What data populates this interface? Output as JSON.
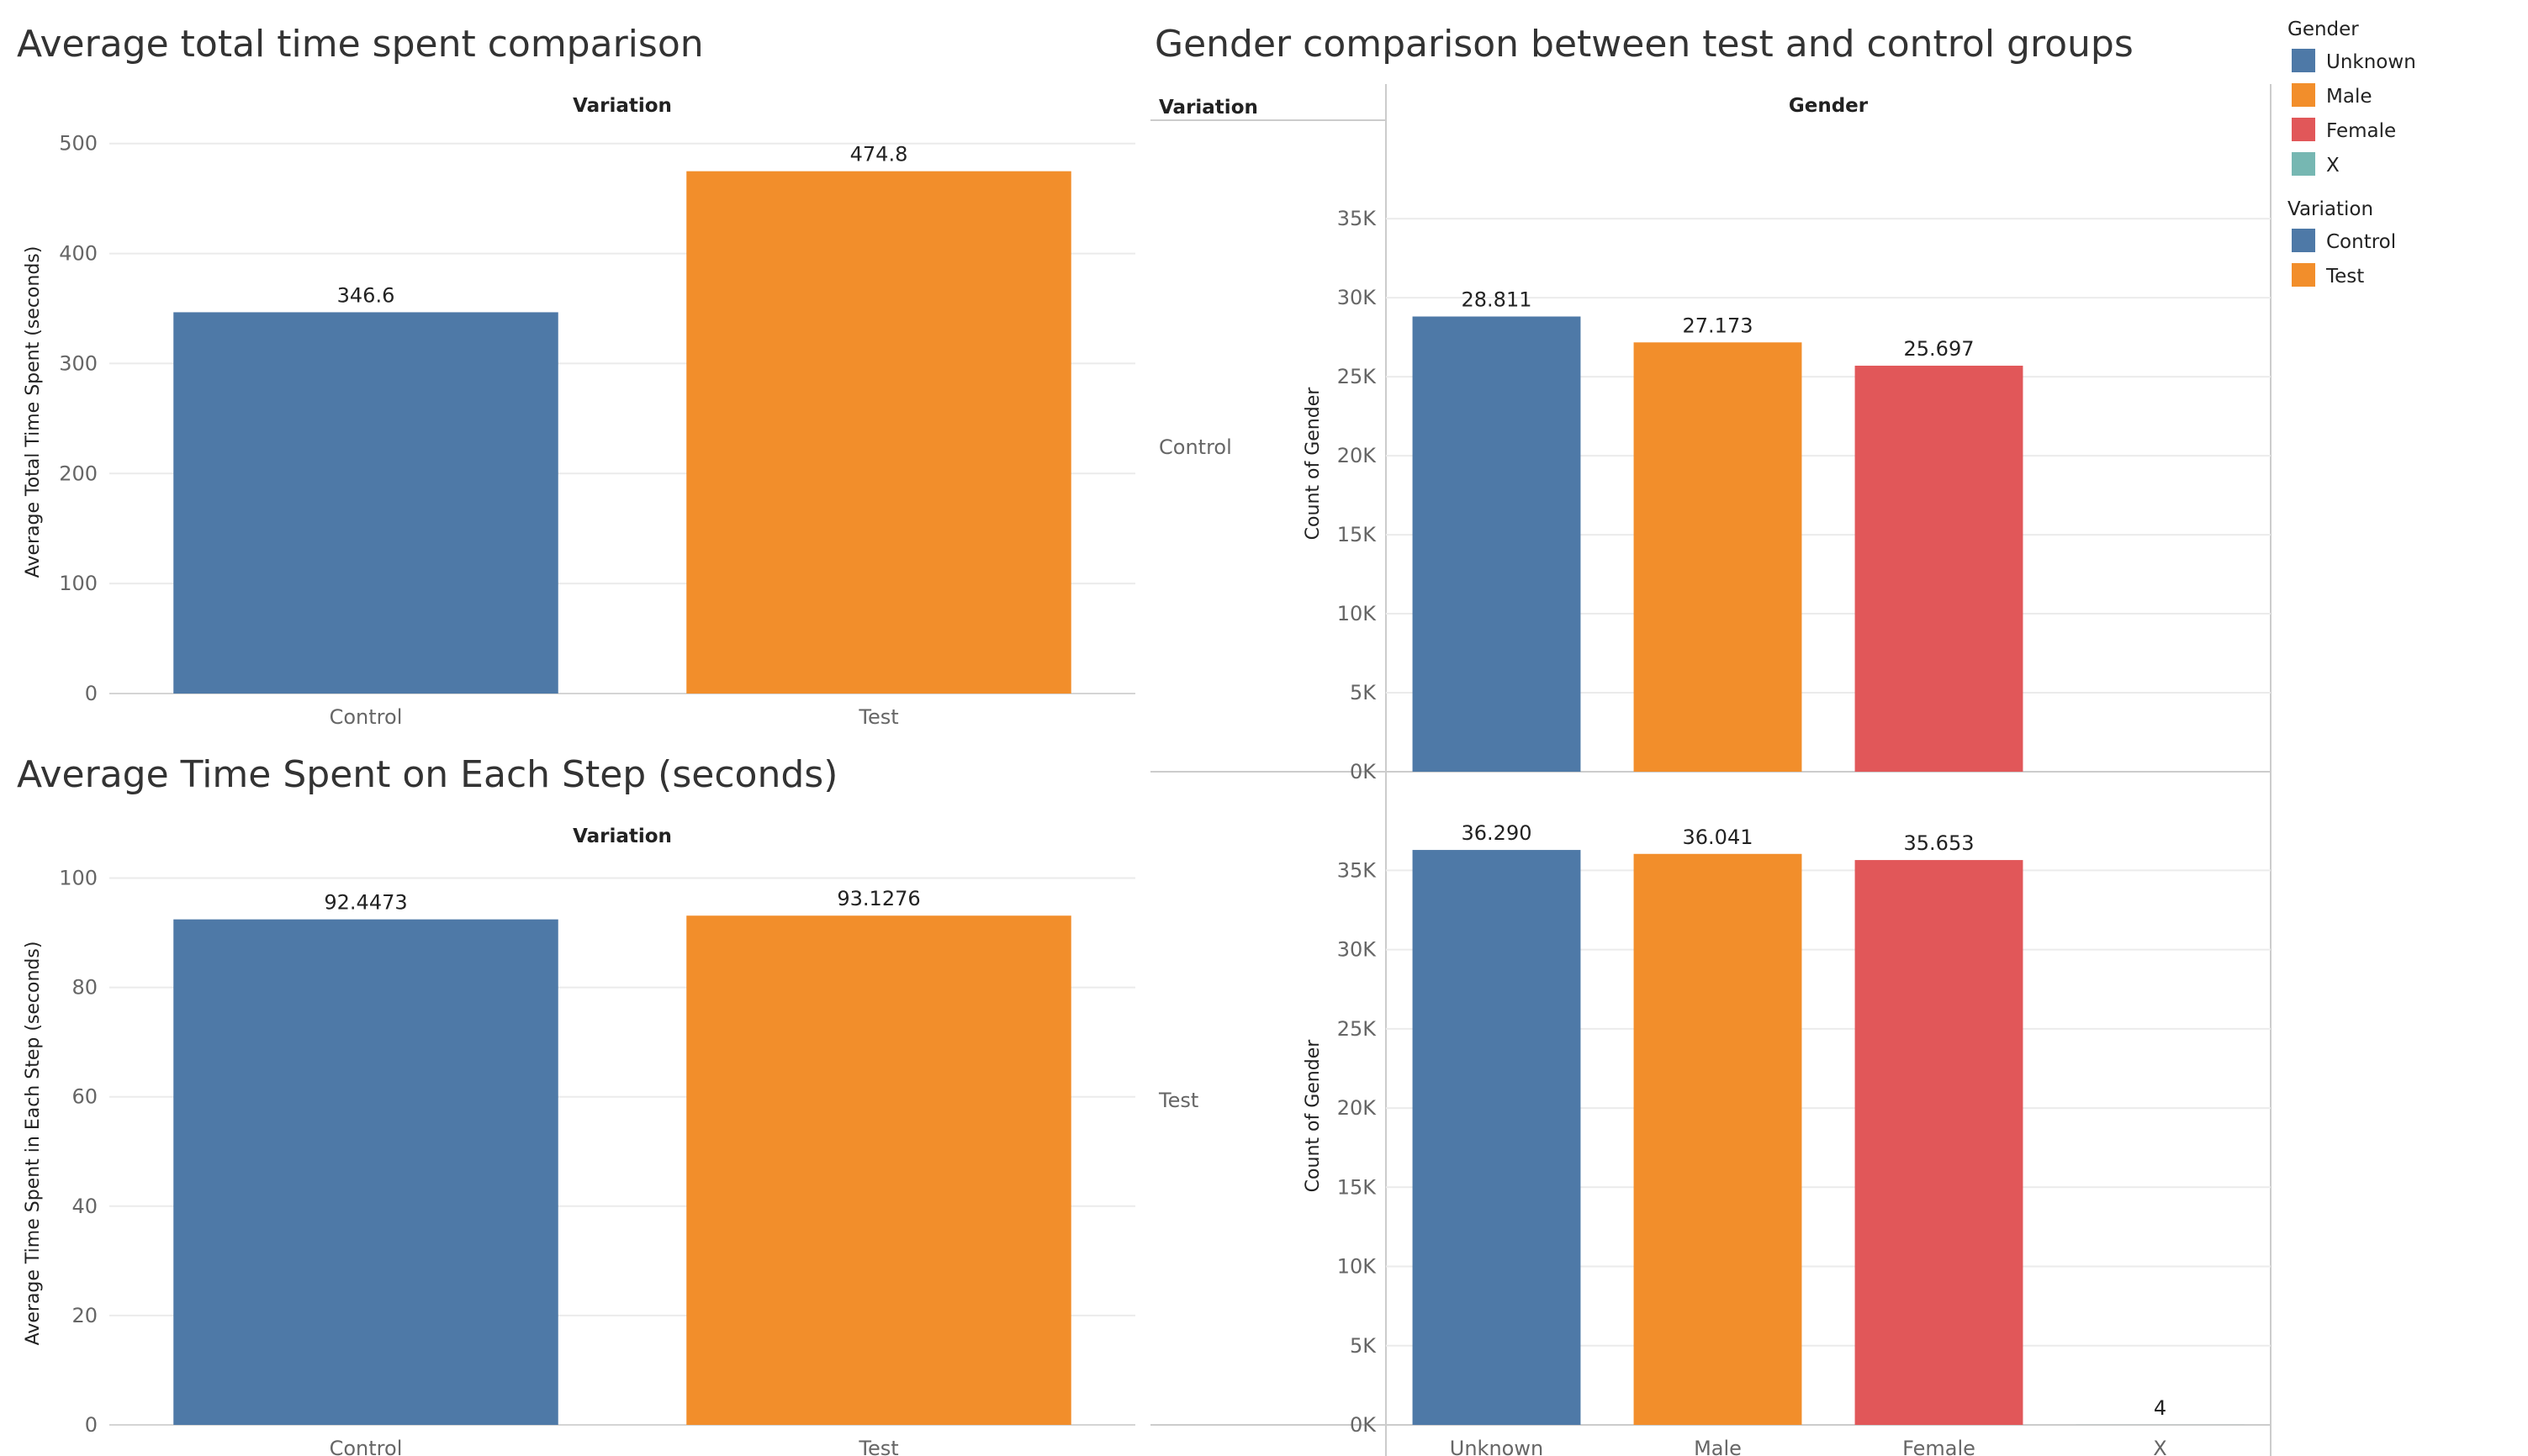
{
  "colors": {
    "control": "#4e79a7",
    "test": "#f28e2b",
    "unknown": "#4e79a7",
    "male": "#f28e2b",
    "female": "#e15759",
    "x": "#76b7b2",
    "grid": "#ebebeb",
    "axis_text": "#666666",
    "label_text": "#222222"
  },
  "legend": {
    "gender": {
      "title": "Gender",
      "items": [
        {
          "label": "Unknown",
          "color": "#4e79a7"
        },
        {
          "label": "Male",
          "color": "#f28e2b"
        },
        {
          "label": "Female",
          "color": "#e15759"
        },
        {
          "label": "X",
          "color": "#76b7b2"
        }
      ]
    },
    "variation": {
      "title": "Variation",
      "items": [
        {
          "label": "Control",
          "color": "#4e79a7"
        },
        {
          "label": "Test",
          "color": "#f28e2b"
        }
      ]
    }
  },
  "chart_data": [
    {
      "type": "bar",
      "title": "Average total time spent comparison",
      "column_header": "Variation",
      "categories": [
        "Control",
        "Test"
      ],
      "values": [
        346.6,
        474.8
      ],
      "value_labels": [
        "346.6",
        "474.8"
      ],
      "colors": [
        "#4e79a7",
        "#f28e2b"
      ],
      "ylabel": "Average Total Time Spent (seconds)",
      "yticks": [
        "0",
        "100",
        "200",
        "300",
        "400",
        "500"
      ],
      "ylim": [
        0,
        512
      ],
      "grid": true
    },
    {
      "type": "bar",
      "title": "Average Time Spent on Each Step (seconds)",
      "column_header": "Variation",
      "categories": [
        "Control",
        "Test"
      ],
      "values": [
        92.4473,
        93.1276
      ],
      "value_labels": [
        "92.4473",
        "93.1276"
      ],
      "colors": [
        "#4e79a7",
        "#f28e2b"
      ],
      "ylabel": "Average Time Spent in Each Step (seconds)",
      "yticks": [
        "0",
        "20",
        "40",
        "60",
        "80",
        "100"
      ],
      "ylim": [
        0,
        103
      ]
    },
    {
      "type": "bar",
      "title": "Gender comparison between test and control groups",
      "row_header": "Variation",
      "column_header": "Gender",
      "categories": [
        "Unknown",
        "Male",
        "Female",
        "X"
      ],
      "colors": [
        "#4e79a7",
        "#f28e2b",
        "#e15759",
        "#76b7b2"
      ],
      "ylabel": "Count of Gender",
      "yticks": [
        "0K",
        "5K",
        "10K",
        "15K",
        "20K",
        "25K",
        "30K",
        "35K"
      ],
      "ylim": [
        0,
        39000
      ],
      "series": [
        {
          "name": "Control",
          "values": [
            28811,
            27173,
            25697,
            0
          ],
          "value_labels": [
            "28.811",
            "27.173",
            "25.697",
            ""
          ]
        },
        {
          "name": "Test",
          "values": [
            36290,
            36041,
            35653,
            4
          ],
          "value_labels": [
            "36.290",
            "36.041",
            "35.653",
            "4"
          ]
        }
      ]
    }
  ]
}
